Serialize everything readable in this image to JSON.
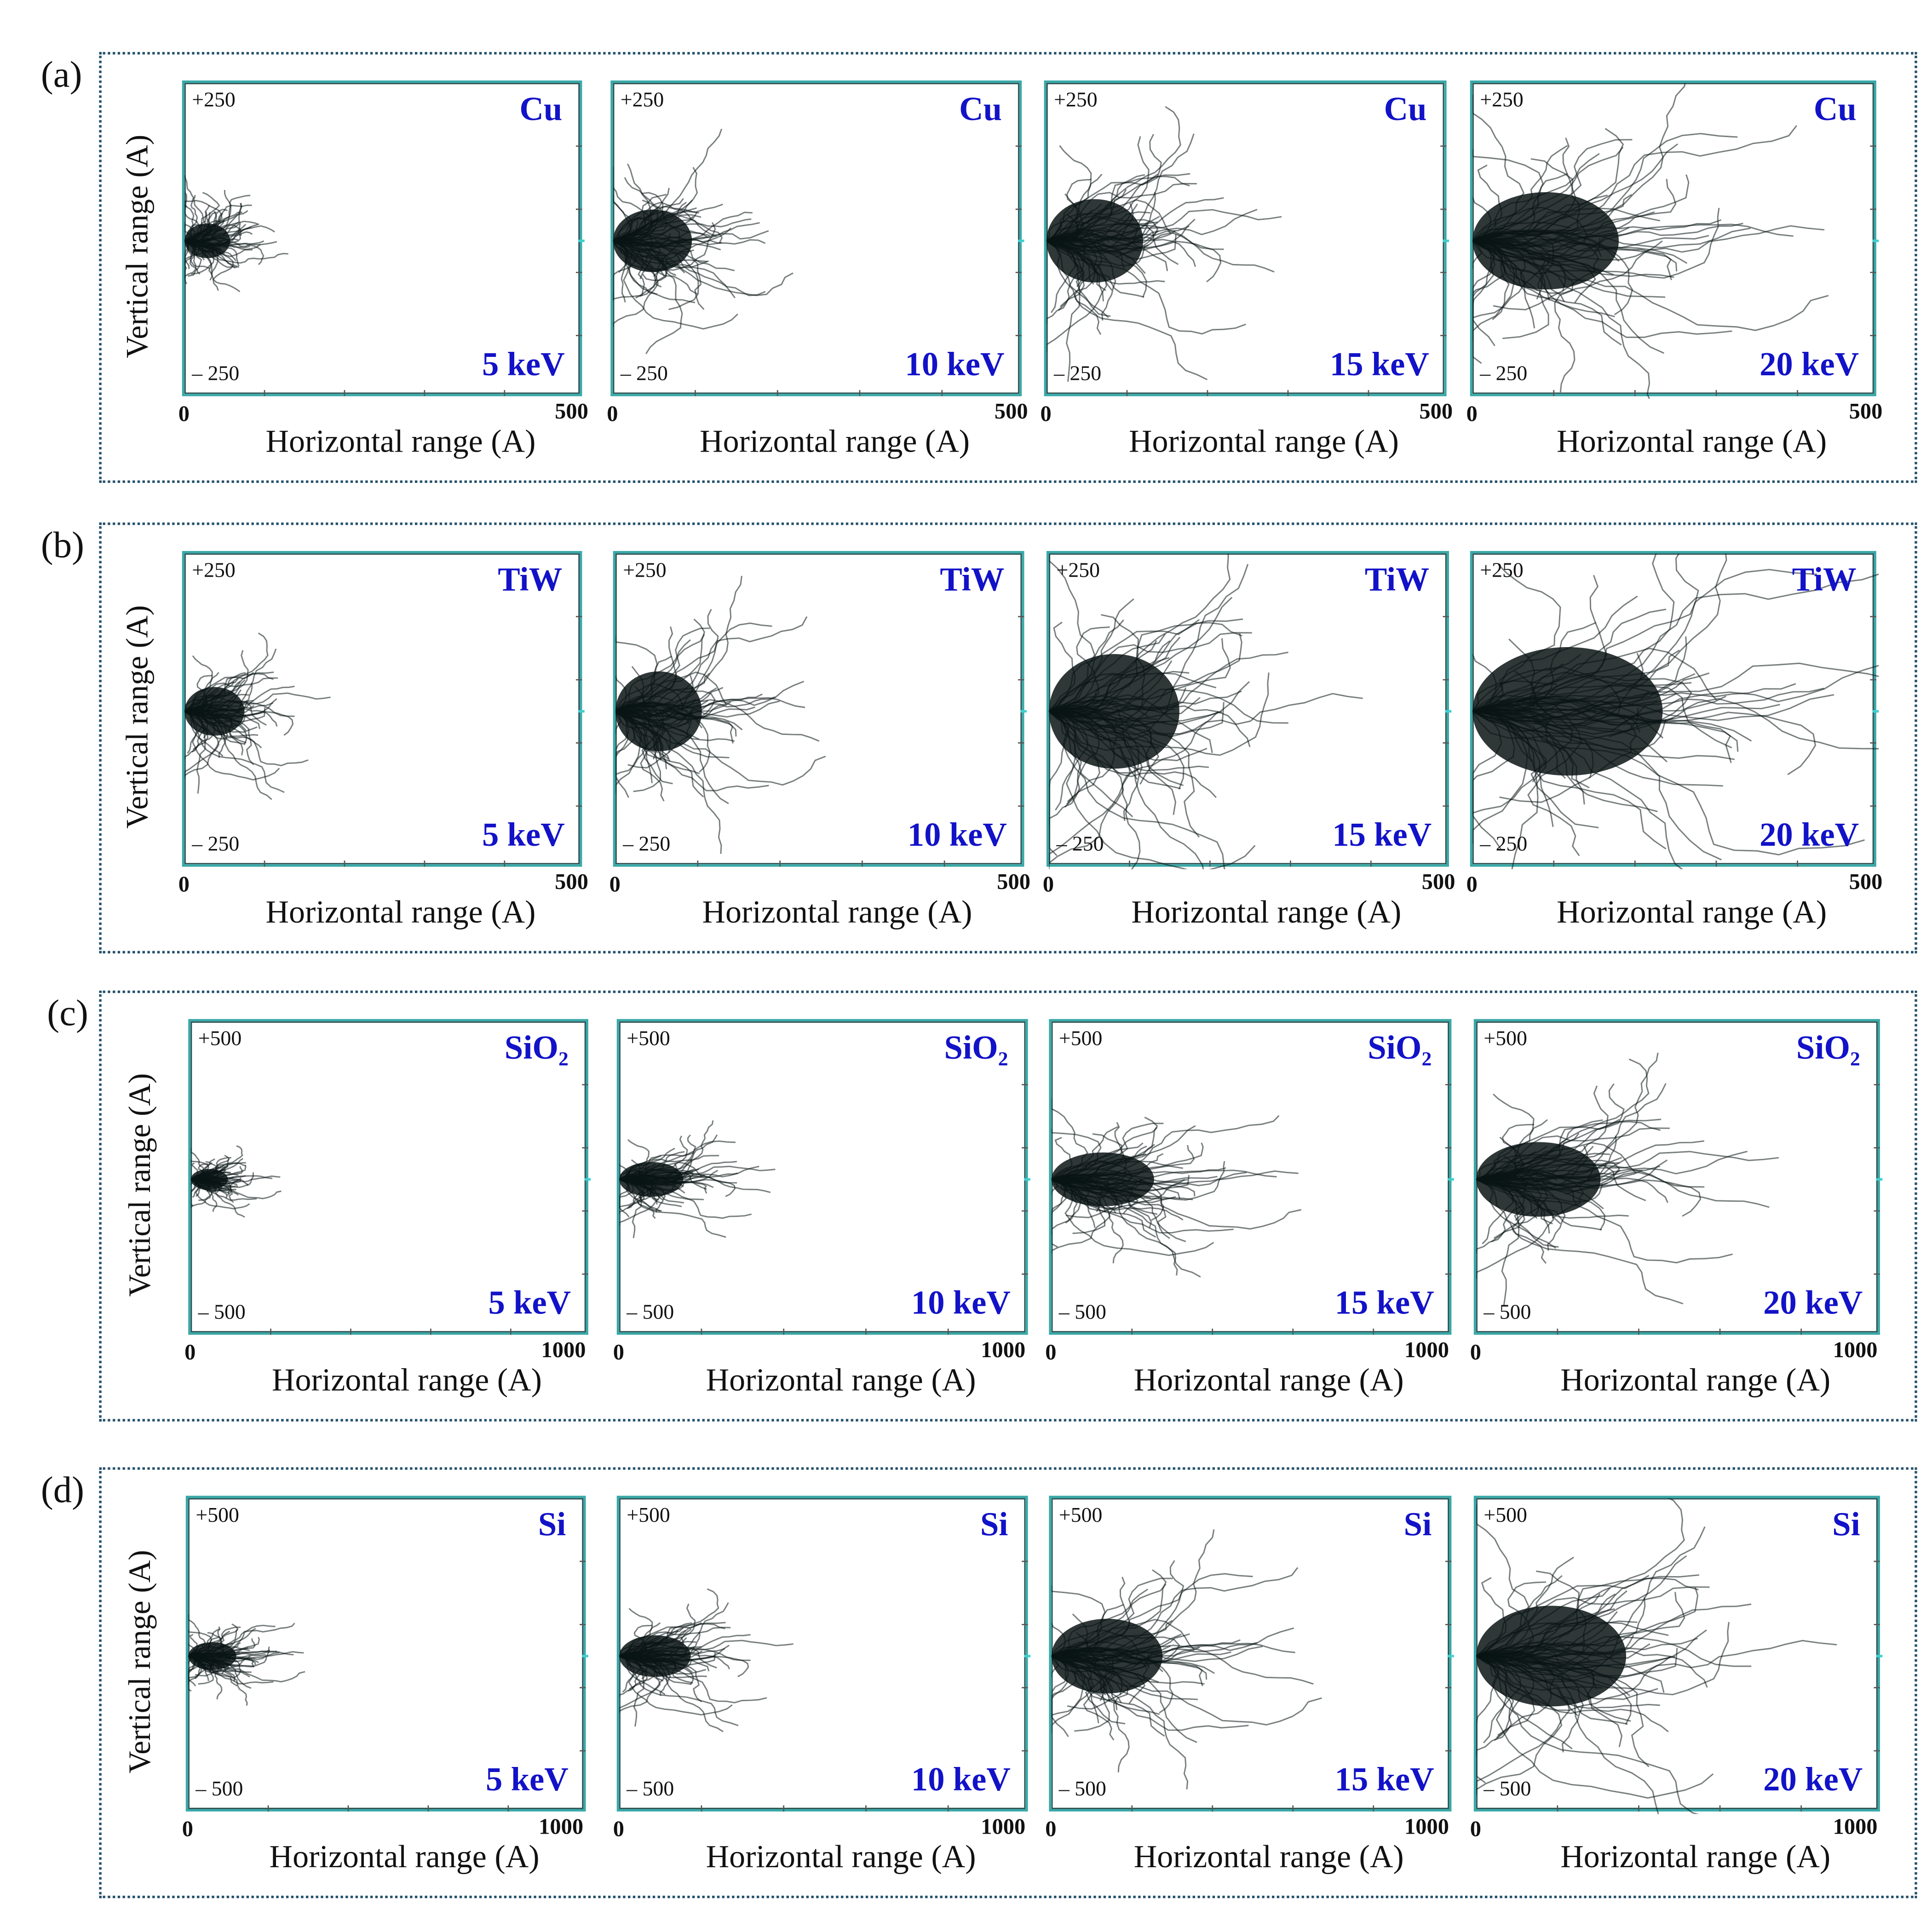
{
  "rows": [
    {
      "label": "(a)",
      "ylabel": "Vertical range (A)"
    },
    {
      "label": "(b)",
      "ylabel": "Vertical range (A)"
    },
    {
      "label": "(c)",
      "ylabel": "Vertical range (A)"
    },
    {
      "label": "(d)",
      "ylabel": "Vertical range (A)"
    }
  ],
  "colors": {
    "label_blue": "#1212c8",
    "frame": "#3aa8a8",
    "box": "#24506a",
    "trajectory": "#0a1414"
  },
  "chart_data": [
    {
      "type": "scatter",
      "row": 0,
      "title": "Cu",
      "energy": "5 keV",
      "xlabel": "Horizontal range (A)",
      "ylabel": "Vertical range (A)",
      "xlim": [
        0,
        500
      ],
      "ylim": [
        -250,
        250
      ],
      "x_ticks": [
        "0",
        "500"
      ],
      "y_ticks": [
        "+250",
        "– 250"
      ],
      "approx_max_horizontal_range": 95,
      "approx_vertical_half_spread": 50
    },
    {
      "type": "scatter",
      "row": 0,
      "title": "Cu",
      "energy": "10 keV",
      "xlabel": "Horizontal range (A)",
      "ylabel": "Vertical range (A)",
      "xlim": [
        0,
        500
      ],
      "ylim": [
        -250,
        250
      ],
      "x_ticks": [
        "0",
        "500"
      ],
      "y_ticks": [
        "+250",
        "– 250"
      ],
      "approx_max_horizontal_range": 160,
      "approx_vertical_half_spread": 90
    },
    {
      "type": "scatter",
      "row": 0,
      "title": "Cu",
      "energy": "15 keV",
      "xlabel": "Horizontal range (A)",
      "ylabel": "Vertical range (A)",
      "xlim": [
        0,
        500
      ],
      "ylim": [
        -250,
        250
      ],
      "x_ticks": [
        "0",
        "500"
      ],
      "y_ticks": [
        "+250",
        "– 250"
      ],
      "approx_max_horizontal_range": 200,
      "approx_vertical_half_spread": 120
    },
    {
      "type": "scatter",
      "row": 0,
      "title": "Cu",
      "energy": "20 keV",
      "xlabel": "Horizontal range (A)",
      "ylabel": "Vertical range (A)",
      "xlim": [
        0,
        500
      ],
      "ylim": [
        -250,
        250
      ],
      "x_ticks": [
        "0",
        "500"
      ],
      "y_ticks": [
        "+250",
        "– 250"
      ],
      "approx_max_horizontal_range": 300,
      "approx_vertical_half_spread": 140
    },
    {
      "type": "scatter",
      "row": 1,
      "title": "TiW",
      "energy": "5 keV",
      "xlabel": "Horizontal range (A)",
      "ylabel": "Vertical range (A)",
      "xlim": [
        0,
        500
      ],
      "ylim": [
        -250,
        250
      ],
      "x_ticks": [
        "0",
        "500"
      ],
      "y_ticks": [
        "+250",
        "– 250"
      ],
      "approx_max_horizontal_range": 125,
      "approx_vertical_half_spread": 70
    },
    {
      "type": "scatter",
      "row": 1,
      "title": "TiW",
      "energy": "10 keV",
      "xlabel": "Horizontal range (A)",
      "ylabel": "Vertical range (A)",
      "xlim": [
        0,
        500
      ],
      "ylim": [
        -250,
        250
      ],
      "x_ticks": [
        "0",
        "500"
      ],
      "y_ticks": [
        "+250",
        "– 250"
      ],
      "approx_max_horizontal_range": 175,
      "approx_vertical_half_spread": 115
    },
    {
      "type": "scatter",
      "row": 1,
      "title": "TiW",
      "energy": "15 keV",
      "xlabel": "Horizontal range (A)",
      "ylabel": "Vertical range (A)",
      "xlim": [
        0,
        500
      ],
      "ylim": [
        -250,
        250
      ],
      "x_ticks": [
        "0",
        "500"
      ],
      "y_ticks": [
        "+250",
        "– 250"
      ],
      "approx_max_horizontal_range": 270,
      "approx_vertical_half_spread": 165
    },
    {
      "type": "scatter",
      "row": 1,
      "title": "TiW",
      "energy": "20 keV",
      "xlabel": "Horizontal range (A)",
      "ylabel": "Vertical range (A)",
      "xlim": [
        0,
        500
      ],
      "ylim": [
        -250,
        250
      ],
      "x_ticks": [
        "0",
        "500"
      ],
      "y_ticks": [
        "+250",
        "– 250"
      ],
      "approx_max_horizontal_range": 390,
      "approx_vertical_half_spread": 185
    },
    {
      "type": "scatter",
      "row": 2,
      "title": "SiO₂",
      "energy": "5 keV",
      "xlabel": "Horizontal range (A)",
      "ylabel": "Vertical range (A)",
      "xlim": [
        0,
        1000
      ],
      "ylim": [
        -500,
        500
      ],
      "x_ticks": [
        "0",
        "1000"
      ],
      "y_ticks": [
        "+500",
        "– 500"
      ],
      "approx_max_horizontal_range": 155,
      "approx_vertical_half_spread": 60
    },
    {
      "type": "scatter",
      "row": 2,
      "title": "SiO₂",
      "energy": "10 keV",
      "xlabel": "Horizontal range (A)",
      "ylabel": "Vertical range (A)",
      "xlim": [
        0,
        1000
      ],
      "ylim": [
        -500,
        500
      ],
      "x_ticks": [
        "0",
        "1000"
      ],
      "y_ticks": [
        "+500",
        "– 500"
      ],
      "approx_max_horizontal_range": 260,
      "approx_vertical_half_spread": 100
    },
    {
      "type": "scatter",
      "row": 2,
      "title": "SiO₂",
      "energy": "15 keV",
      "xlabel": "Horizontal range (A)",
      "ylabel": "Vertical range (A)",
      "xlim": [
        0,
        1000
      ],
      "ylim": [
        -500,
        500
      ],
      "x_ticks": [
        "0",
        "1000"
      ],
      "y_ticks": [
        "+500",
        "– 500"
      ],
      "approx_max_horizontal_range": 425,
      "approx_vertical_half_spread": 155
    },
    {
      "type": "scatter",
      "row": 2,
      "title": "SiO₂",
      "energy": "20 keV",
      "xlabel": "Horizontal range (A)",
      "ylabel": "Vertical range (A)",
      "xlim": [
        0,
        1000
      ],
      "ylim": [
        -500,
        500
      ],
      "x_ticks": [
        "0",
        "1000"
      ],
      "y_ticks": [
        "+500",
        "– 500"
      ],
      "approx_max_horizontal_range": 510,
      "approx_vertical_half_spread": 215
    },
    {
      "type": "scatter",
      "row": 3,
      "title": "Si",
      "energy": "5 keV",
      "xlabel": "Horizontal range (A)",
      "ylabel": "Vertical range (A)",
      "xlim": [
        0,
        1000
      ],
      "ylim": [
        -500,
        500
      ],
      "x_ticks": [
        "0",
        "1000"
      ],
      "y_ticks": [
        "+500",
        "– 500"
      ],
      "approx_max_horizontal_range": 200,
      "approx_vertical_half_spread": 80
    },
    {
      "type": "scatter",
      "row": 3,
      "title": "Si",
      "energy": "10 keV",
      "xlabel": "Horizontal range (A)",
      "ylabel": "Vertical range (A)",
      "xlim": [
        0,
        1000
      ],
      "ylim": [
        -500,
        500
      ],
      "x_ticks": [
        "0",
        "1000"
      ],
      "y_ticks": [
        "+500",
        "– 500"
      ],
      "approx_max_horizontal_range": 290,
      "approx_vertical_half_spread": 120
    },
    {
      "type": "scatter",
      "row": 3,
      "title": "Si",
      "energy": "15 keV",
      "xlabel": "Horizontal range (A)",
      "ylabel": "Vertical range (A)",
      "xlim": [
        0,
        1000
      ],
      "ylim": [
        -500,
        500
      ],
      "x_ticks": [
        "0",
        "1000"
      ],
      "y_ticks": [
        "+500",
        "– 500"
      ],
      "approx_max_horizontal_range": 460,
      "approx_vertical_half_spread": 215
    },
    {
      "type": "scatter",
      "row": 3,
      "title": "Si",
      "energy": "20 keV",
      "xlabel": "Horizontal range (A)",
      "ylabel": "Vertical range (A)",
      "xlim": [
        0,
        1000
      ],
      "ylim": [
        -500,
        500
      ],
      "x_ticks": [
        "0",
        "1000"
      ],
      "y_ticks": [
        "+500",
        "– 500"
      ],
      "approx_max_horizontal_range": 615,
      "approx_vertical_half_spread": 290
    }
  ]
}
